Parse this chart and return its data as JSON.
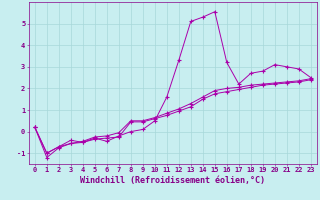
{
  "title": "",
  "xlabel": "Windchill (Refroidissement éolien,°C)",
  "ylabel": "",
  "bg_color": "#c8eef0",
  "line_color": "#aa00aa",
  "marker": "+",
  "xlim": [
    -0.5,
    23.5
  ],
  "ylim": [
    -1.5,
    6.0
  ],
  "yticks": [
    -1,
    0,
    1,
    2,
    3,
    4,
    5
  ],
  "xticks": [
    0,
    1,
    2,
    3,
    4,
    5,
    6,
    7,
    8,
    9,
    10,
    11,
    12,
    13,
    14,
    15,
    16,
    17,
    18,
    19,
    20,
    21,
    22,
    23
  ],
  "series1_x": [
    0,
    1,
    2,
    3,
    4,
    5,
    6,
    7,
    8,
    9,
    10,
    11,
    12,
    13,
    14,
    15,
    16,
    17,
    18,
    19,
    20,
    21,
    22,
    23
  ],
  "series1_y": [
    0.2,
    -1.0,
    -0.7,
    -0.4,
    -0.5,
    -0.3,
    -0.45,
    -0.2,
    0.0,
    0.1,
    0.5,
    1.6,
    3.3,
    5.1,
    5.3,
    5.55,
    3.2,
    2.2,
    2.7,
    2.8,
    3.1,
    3.0,
    2.9,
    2.5
  ],
  "series2_x": [
    0,
    1,
    2,
    3,
    4,
    5,
    6,
    7,
    8,
    9,
    10,
    11,
    12,
    13,
    14,
    15,
    16,
    17,
    18,
    19,
    20,
    21,
    22,
    23
  ],
  "series2_y": [
    0.2,
    -1.2,
    -0.75,
    -0.55,
    -0.5,
    -0.35,
    -0.3,
    -0.25,
    0.45,
    0.45,
    0.6,
    0.75,
    0.95,
    1.15,
    1.5,
    1.75,
    1.85,
    1.95,
    2.05,
    2.15,
    2.2,
    2.25,
    2.3,
    2.4
  ],
  "series3_x": [
    0,
    1,
    2,
    3,
    4,
    5,
    6,
    7,
    8,
    9,
    10,
    11,
    12,
    13,
    14,
    15,
    16,
    17,
    18,
    19,
    20,
    21,
    22,
    23
  ],
  "series3_y": [
    0.2,
    -1.0,
    -0.7,
    -0.55,
    -0.45,
    -0.25,
    -0.2,
    -0.05,
    0.5,
    0.5,
    0.65,
    0.85,
    1.05,
    1.3,
    1.6,
    1.9,
    2.0,
    2.05,
    2.15,
    2.2,
    2.25,
    2.3,
    2.35,
    2.45
  ],
  "grid_color": "#a8d8da",
  "tick_color": "#880088",
  "tick_fontsize": 5.0,
  "xlabel_fontsize": 6.0,
  "linewidth": 0.7,
  "markersize": 2.5,
  "markeredgewidth": 0.8
}
